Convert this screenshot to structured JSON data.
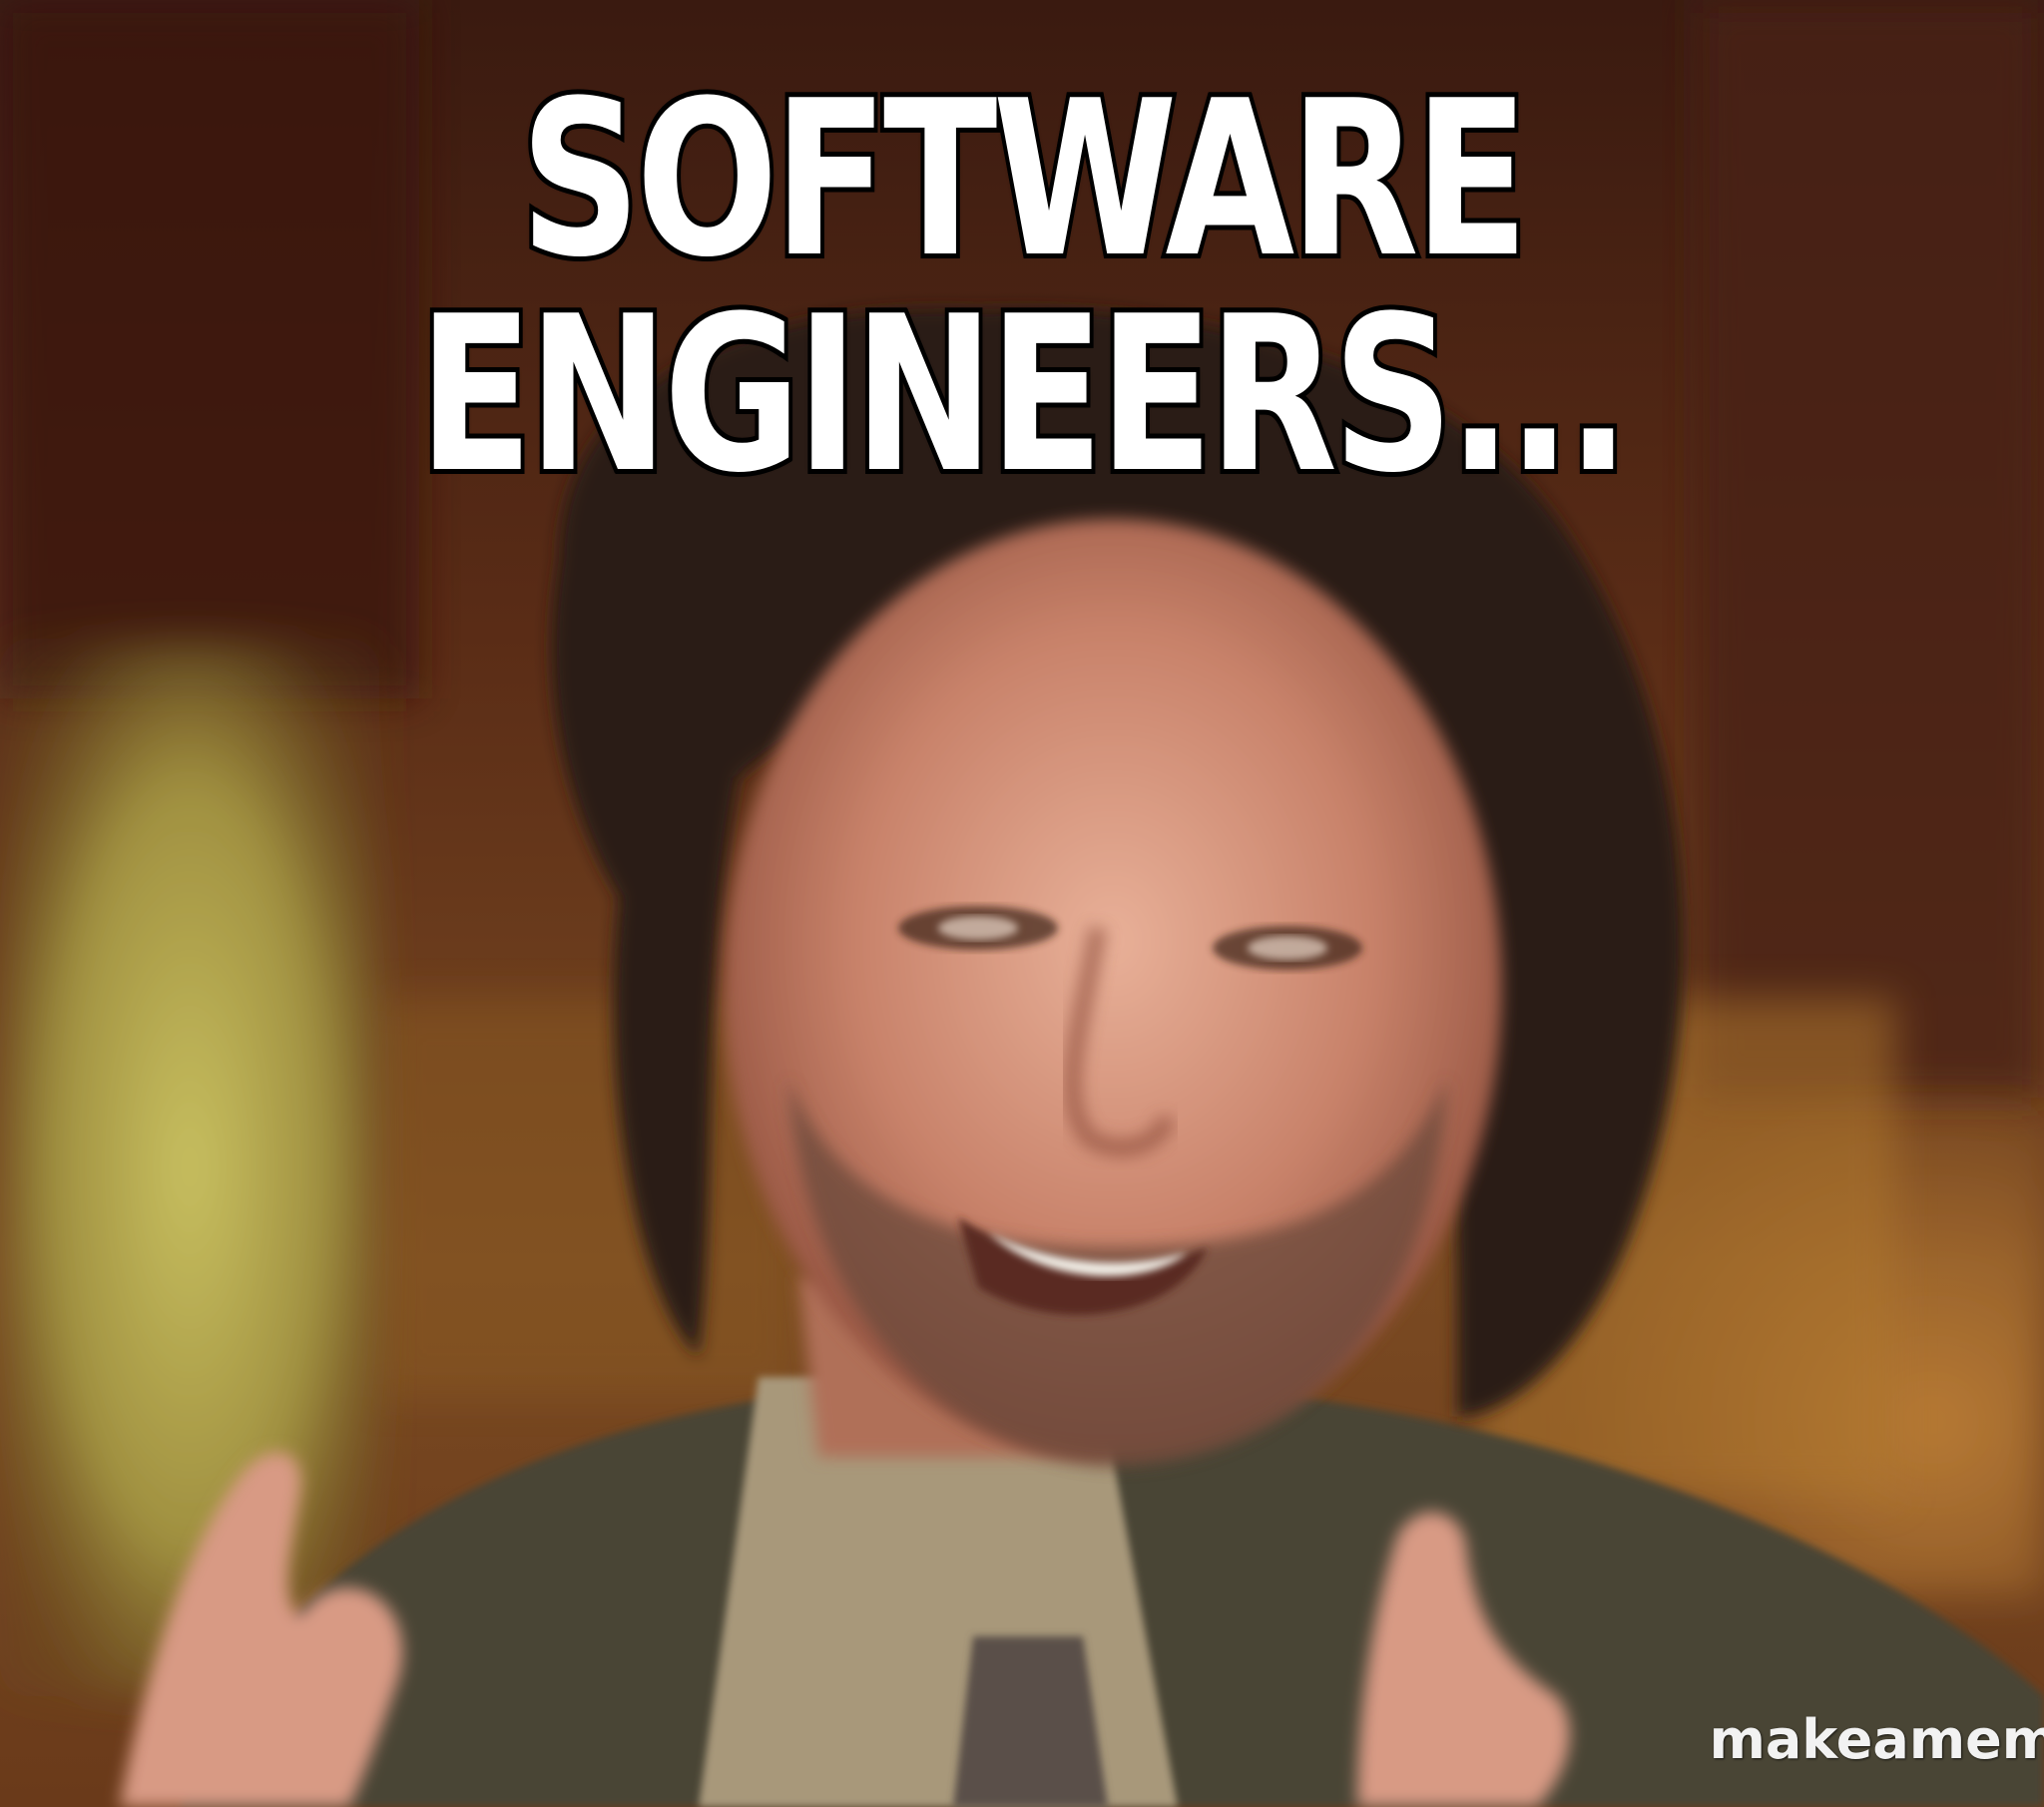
{
  "meme": {
    "caption_lines": [
      "SOFTWARE",
      "ENGINEERS..."
    ],
    "watermark": "makeamem"
  },
  "colors": {
    "caption_fill": "#ffffff",
    "caption_outline": "#000000",
    "background_warm": "#6b3a1c",
    "skin": "#c8856a",
    "hair": "#2a1c14",
    "suit": "#4a4535",
    "shirt": "#a8987a"
  }
}
